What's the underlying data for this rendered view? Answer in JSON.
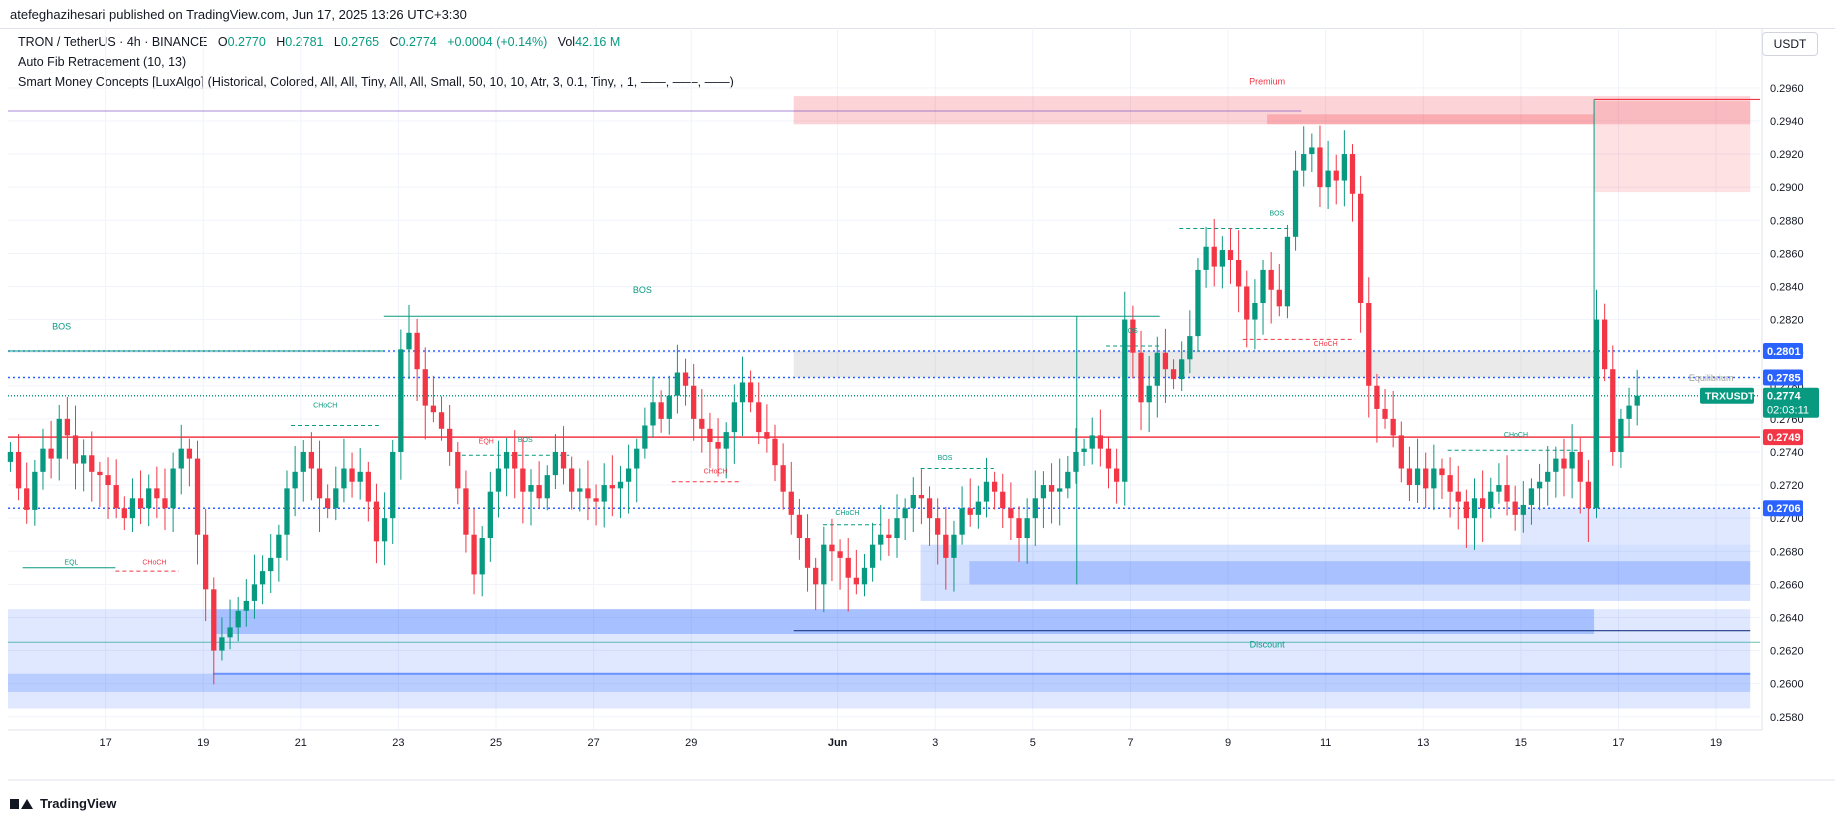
{
  "header": {
    "publisher": "atefeghazihesari published on TradingView.com, Jun 17, 2025 13:26 UTC+3:30"
  },
  "legend": {
    "symbol": "TRON / TetherUS · 4h · BINANCE",
    "o_label": "O",
    "o_value": "0.2770",
    "h_label": "H",
    "h_value": "0.2781",
    "l_label": "L",
    "l_value": "0.2765",
    "c_label": "C",
    "c_value": "0.2774",
    "change": "+0.0004 (+0.14%)",
    "vol_label": "Vol",
    "vol_value": "42.16 M",
    "indicator1": "Auto Fib Retracement (10, 13)",
    "indicator2": "Smart Money Concepts [LuxAlgo] (Historical, Colored, All, All, Tiny, All, All, Small, 50, 10, 10, Atr, 3, 0.1, Tiny, , 1, ——, ——, ——)"
  },
  "currency": "USDT",
  "footer": {
    "brand": "TradingView",
    "logo_icon": "tradingview-logo-icon"
  },
  "chart_data": {
    "type": "candlestick",
    "ylim": [
      0.2572,
      0.2972
    ],
    "y_ticks": [
      "0.2960",
      "0.2940",
      "0.2920",
      "0.2900",
      "0.2880",
      "0.2860",
      "0.2840",
      "0.2820",
      "0.2800",
      "0.2780",
      "0.2760",
      "0.2740",
      "0.2720",
      "0.2700",
      "0.2680",
      "0.2660",
      "0.2640",
      "0.2620",
      "0.2600",
      "0.2580"
    ],
    "x_ticks": [
      {
        "label": "17",
        "day": 17
      },
      {
        "label": "19",
        "day": 19
      },
      {
        "label": "21",
        "day": 21
      },
      {
        "label": "23",
        "day": 23
      },
      {
        "label": "25",
        "day": 25
      },
      {
        "label": "27",
        "day": 27
      },
      {
        "label": "29",
        "day": 29
      },
      {
        "label": "Jun",
        "day": 32
      },
      {
        "label": "3",
        "day": 34
      },
      {
        "label": "5",
        "day": 36
      },
      {
        "label": "7",
        "day": 38
      },
      {
        "label": "9",
        "day": 40
      },
      {
        "label": "11",
        "day": 42
      },
      {
        "label": "13",
        "day": 44
      },
      {
        "label": "15",
        "day": 46
      },
      {
        "label": "17",
        "day": 48
      },
      {
        "label": "19",
        "day": 50
      }
    ],
    "x_range_days": [
      15.0,
      50.9
    ],
    "candle_interval_hours": 4,
    "colors": {
      "up": "#089981",
      "down": "#f23645",
      "blue_line": "#2962ff",
      "red_line": "#f23645",
      "premium": "#f23645",
      "discount": "#089981",
      "zone_blue": "#2962ff",
      "zone_red": "#f23645",
      "zone_gray": "#9e9e9e"
    },
    "closes": [
      0.274,
      0.2718,
      0.2705,
      0.2728,
      0.2742,
      0.2736,
      0.276,
      0.275,
      0.2733,
      0.2738,
      0.2728,
      0.2726,
      0.272,
      0.2706,
      0.27,
      0.2712,
      0.2706,
      0.2718,
      0.2712,
      0.2706,
      0.273,
      0.2742,
      0.2736,
      0.269,
      0.2657,
      0.262,
      0.2628,
      0.2634,
      0.2644,
      0.265,
      0.266,
      0.2668,
      0.2676,
      0.269,
      0.2718,
      0.2728,
      0.274,
      0.273,
      0.2712,
      0.2706,
      0.2718,
      0.273,
      0.2722,
      0.2728,
      0.271,
      0.2686,
      0.27,
      0.274,
      0.2802,
      0.2812,
      0.279,
      0.2768,
      0.2764,
      0.2754,
      0.274,
      0.2718,
      0.269,
      0.2666,
      0.2688,
      0.2716,
      0.273,
      0.274,
      0.273,
      0.2716,
      0.272,
      0.2712,
      0.2726,
      0.274,
      0.273,
      0.2716,
      0.2718,
      0.2712,
      0.271,
      0.272,
      0.2718,
      0.2722,
      0.273,
      0.2742,
      0.2756,
      0.277,
      0.276,
      0.2774,
      0.2788,
      0.278,
      0.276,
      0.2754,
      0.2746,
      0.2742,
      0.2752,
      0.277,
      0.2782,
      0.277,
      0.2752,
      0.2748,
      0.2732,
      0.2716,
      0.2702,
      0.2688,
      0.267,
      0.266,
      0.2684,
      0.268,
      0.2676,
      0.2664,
      0.266,
      0.267,
      0.2684,
      0.269,
      0.2688,
      0.27,
      0.2706,
      0.2714,
      0.2712,
      0.27,
      0.269,
      0.2676,
      0.269,
      0.2706,
      0.2702,
      0.271,
      0.2722,
      0.2716,
      0.2706,
      0.27,
      0.2688,
      0.27,
      0.2712,
      0.272,
      0.2716,
      0.2718,
      0.2728,
      0.274,
      0.2742,
      0.275,
      0.2742,
      0.273,
      0.2722,
      0.282,
      0.28,
      0.277,
      0.278,
      0.28,
      0.279,
      0.2784,
      0.2796,
      0.281,
      0.285,
      0.2864,
      0.2852,
      0.2862,
      0.2856,
      0.284,
      0.282,
      0.283,
      0.285,
      0.2838,
      0.2828,
      0.287,
      0.291,
      0.292,
      0.2924,
      0.29,
      0.291,
      0.2904,
      0.292,
      0.2896,
      0.283,
      0.278,
      0.2766,
      0.276,
      0.275,
      0.273,
      0.272,
      0.273,
      0.2718,
      0.273,
      0.2726,
      0.2716,
      0.271,
      0.27,
      0.2712,
      0.2706,
      0.2716,
      0.272,
      0.271,
      0.2702,
      0.2708,
      0.2718,
      0.2722,
      0.2728,
      0.2736,
      0.273,
      0.274,
      0.2722,
      0.2706,
      0.282,
      0.279,
      0.274,
      0.276,
      0.2768,
      0.2774
    ],
    "labels": [
      {
        "text": "BOS",
        "day": 16.1,
        "price": 0.2814,
        "color": "#089981"
      },
      {
        "text": "BOS",
        "day": 28.0,
        "price": 0.2836,
        "color": "#089981"
      },
      {
        "text": "CHoCH",
        "day": 21.5,
        "price": 0.2767,
        "color": "#089981"
      },
      {
        "text": "EQL",
        "day": 16.3,
        "price": 0.2672,
        "color": "#089981"
      },
      {
        "text": "CHoCH",
        "day": 18.0,
        "price": 0.2672,
        "color": "#f23645"
      },
      {
        "text": "EQH",
        "day": 24.8,
        "price": 0.2745,
        "color": "#f23645"
      },
      {
        "text": "BOS",
        "day": 25.6,
        "price": 0.2746,
        "color": "#089981"
      },
      {
        "text": "CHoCH",
        "day": 29.5,
        "price": 0.2727,
        "color": "#f23645"
      },
      {
        "text": "CHoCH",
        "day": 32.2,
        "price": 0.2702,
        "color": "#089981"
      },
      {
        "text": "BOS",
        "day": 34.2,
        "price": 0.2735,
        "color": "#089981"
      },
      {
        "text": "BOS",
        "day": 38.0,
        "price": 0.2812,
        "color": "#089981"
      },
      {
        "text": "BOS",
        "day": 41.0,
        "price": 0.2883,
        "color": "#089981"
      },
      {
        "text": "CHoCH",
        "day": 42.0,
        "price": 0.2804,
        "color": "#f23645"
      },
      {
        "text": "CHoCH",
        "day": 45.9,
        "price": 0.2749,
        "color": "#089981"
      },
      {
        "text": "Premium",
        "day": 40.8,
        "price": 0.2962,
        "color": "#f23645"
      },
      {
        "text": "Discount",
        "day": 40.8,
        "price": 0.2622,
        "color": "#089981"
      },
      {
        "text": "Equilibrium",
        "day": 49.9,
        "price": 0.2783,
        "color": "#9e9e9e"
      }
    ],
    "price_labels": [
      {
        "text": "0.2801",
        "price": 0.2801,
        "bg": "#2962ff"
      },
      {
        "text": "0.2785",
        "price": 0.2785,
        "bg": "#2962ff"
      },
      {
        "text": "0.2749",
        "price": 0.2749,
        "bg": "#f23645"
      },
      {
        "text": "0.2706",
        "price": 0.2706,
        "bg": "#2962ff"
      }
    ],
    "current": {
      "symbol": "TRXUSDT",
      "price_text": "0.2774",
      "countdown": "02:03:11",
      "price": 0.2774,
      "bg": "#089981"
    }
  }
}
